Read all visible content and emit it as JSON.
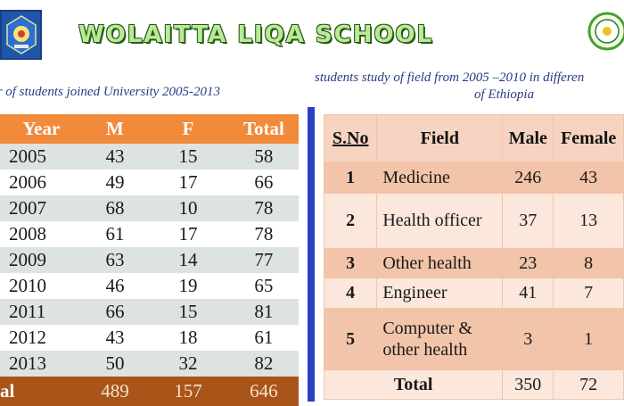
{
  "header": {
    "title": "WOLAITTA LIQA SCHOOL"
  },
  "left_section": {
    "caption": "er of students joined   University 2005-2013",
    "columns": [
      "Year",
      "M",
      "F",
      "Total"
    ],
    "rows": [
      [
        "2005",
        "43",
        "15",
        "58"
      ],
      [
        "2006",
        "49",
        "17",
        "66"
      ],
      [
        "2007",
        "68",
        "10",
        "78"
      ],
      [
        "2008",
        "61",
        "17",
        "78"
      ],
      [
        "2009",
        "63",
        "14",
        "77"
      ],
      [
        "2010",
        "46",
        "19",
        "65"
      ],
      [
        "2011",
        "66",
        "15",
        "81"
      ],
      [
        "2012",
        "43",
        "18",
        "61"
      ],
      [
        "2013",
        "50",
        "32",
        "82"
      ]
    ],
    "total": {
      "label": "al",
      "m": "489",
      "f": "157",
      "total": "646"
    }
  },
  "right_section": {
    "caption_line1": "students study of  field from 2005 –2010 in differen",
    "caption_line2": "of Ethiopia",
    "columns": [
      "S.No",
      "Field",
      "Male",
      "Female"
    ],
    "rows": [
      {
        "no": "1",
        "field": "Medicine",
        "male": "246",
        "female": "43"
      },
      {
        "no": "2",
        "field": "Health officer",
        "male": "37",
        "female": "13"
      },
      {
        "no": "3",
        "field": "Other health",
        "male": "23",
        "female": "8"
      },
      {
        "no": "4",
        "field": "Engineer",
        "male": "41",
        "female": "7"
      },
      {
        "no": "5",
        "field": "Computer & other health",
        "male": "3",
        "female": "1"
      }
    ],
    "total": {
      "label": "Total",
      "male": "350",
      "female": "72"
    }
  },
  "colors": {
    "header_orange": "#f28a3c",
    "total_brown": "#a9551a",
    "row_grey": "#dde3e0",
    "divider_blue": "#2b3fc2",
    "peach_dark": "#f2c4a9",
    "peach_light": "#fbe7dc",
    "caption_blue": "#2a3a86"
  }
}
